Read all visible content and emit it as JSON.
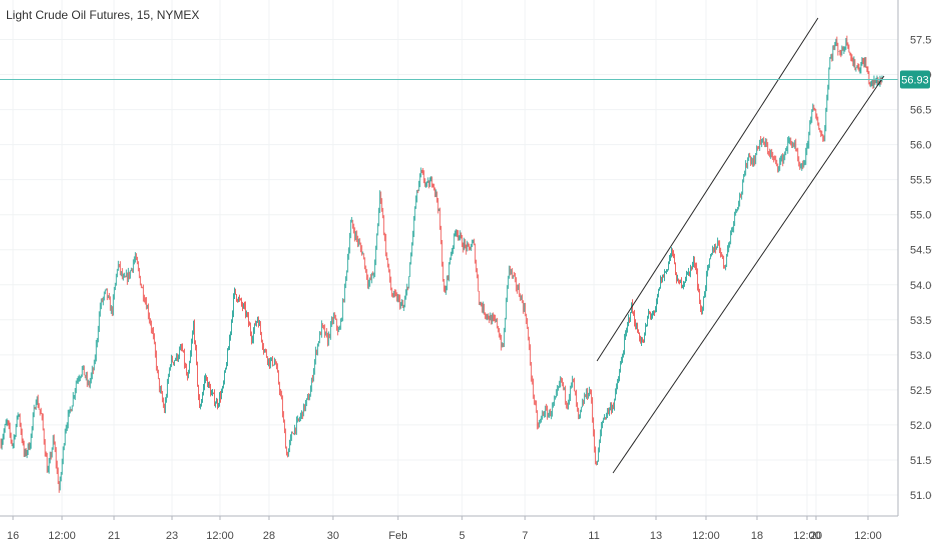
{
  "header": {
    "title": "Light Crude Oil Futures, 15, NYMEX"
  },
  "colors": {
    "up": "#26a69a",
    "down": "#ef5350",
    "grid": "#f0f3f4",
    "axis": "#b2b5be",
    "last_price_line": "#5fc4bb",
    "last_price_tag": "#1e9e8a",
    "channel": "#2b2b2b"
  },
  "chart_data": {
    "type": "candlestick",
    "title": "Light Crude Oil Futures, 15, NYMEX",
    "ylim": [
      50.7,
      57.85
    ],
    "y_ticks": [
      "51.00",
      "51.50",
      "52.00",
      "52.50",
      "53.00",
      "53.50",
      "54.00",
      "54.50",
      "55.00",
      "55.50",
      "56.00",
      "56.50",
      "57.00",
      "57.50"
    ],
    "x_ticks": [
      "16",
      "12:00",
      "21",
      "23",
      "12:00",
      "28",
      "30",
      "Feb",
      "5",
      "7",
      "11",
      "13",
      "12:00",
      "18",
      "12:00",
      "20",
      "12:00"
    ],
    "last_price": "56.93",
    "grid": true,
    "price_path": [
      [
        0,
        51.75
      ],
      [
        1,
        52.05
      ],
      [
        2,
        51.7
      ],
      [
        3,
        52.2
      ],
      [
        4,
        51.55
      ],
      [
        5,
        51.75
      ],
      [
        6,
        52.4
      ],
      [
        7,
        52.1
      ],
      [
        8,
        51.3
      ],
      [
        9,
        51.8
      ],
      [
        10,
        51.05
      ],
      [
        11,
        51.95
      ],
      [
        12,
        52.25
      ],
      [
        13,
        52.65
      ],
      [
        14,
        52.8
      ],
      [
        15,
        52.55
      ],
      [
        16,
        52.85
      ],
      [
        17,
        53.7
      ],
      [
        18,
        53.9
      ],
      [
        19,
        53.6
      ],
      [
        20,
        54.3
      ],
      [
        21,
        54.05
      ],
      [
        22,
        54.15
      ],
      [
        23,
        54.4
      ],
      [
        24,
        54.0
      ],
      [
        25,
        53.7
      ],
      [
        26,
        53.3
      ],
      [
        27,
        52.6
      ],
      [
        28,
        52.2
      ],
      [
        29,
        52.9
      ],
      [
        30,
        52.95
      ],
      [
        31,
        53.1
      ],
      [
        32,
        52.6
      ],
      [
        33,
        53.45
      ],
      [
        34,
        52.2
      ],
      [
        35,
        52.7
      ],
      [
        36,
        52.45
      ],
      [
        37,
        52.3
      ],
      [
        38,
        52.5
      ],
      [
        39,
        53.1
      ],
      [
        40,
        53.9
      ],
      [
        41,
        53.75
      ],
      [
        42,
        53.6
      ],
      [
        43,
        53.25
      ],
      [
        44,
        53.55
      ],
      [
        45,
        53.1
      ],
      [
        46,
        52.9
      ],
      [
        47,
        52.9
      ],
      [
        48,
        52.4
      ],
      [
        49,
        51.55
      ],
      [
        50,
        51.9
      ],
      [
        51,
        52.05
      ],
      [
        52,
        52.25
      ],
      [
        53,
        52.45
      ],
      [
        54,
        53.05
      ],
      [
        55,
        53.4
      ],
      [
        56,
        53.2
      ],
      [
        57,
        53.55
      ],
      [
        58,
        53.3
      ],
      [
        59,
        54.0
      ],
      [
        60,
        54.9
      ],
      [
        61,
        54.65
      ],
      [
        62,
        54.45
      ],
      [
        63,
        54.0
      ],
      [
        64,
        54.2
      ],
      [
        65,
        55.35
      ],
      [
        66,
        54.45
      ],
      [
        67,
        53.85
      ],
      [
        68,
        53.8
      ],
      [
        69,
        53.65
      ],
      [
        70,
        54.15
      ],
      [
        71,
        55.15
      ],
      [
        72,
        55.6
      ],
      [
        73,
        55.4
      ],
      [
        74,
        55.5
      ],
      [
        75,
        55.1
      ],
      [
        76,
        53.8
      ],
      [
        77,
        54.4
      ],
      [
        78,
        54.8
      ],
      [
        79,
        54.6
      ],
      [
        80,
        54.5
      ],
      [
        81,
        54.6
      ],
      [
        82,
        53.75
      ],
      [
        83,
        53.6
      ],
      [
        84,
        53.5
      ],
      [
        85,
        53.45
      ],
      [
        86,
        53.05
      ],
      [
        87,
        54.25
      ],
      [
        88,
        54.05
      ],
      [
        89,
        53.85
      ],
      [
        90,
        53.55
      ],
      [
        91,
        52.6
      ],
      [
        92,
        51.95
      ],
      [
        93,
        52.2
      ],
      [
        94,
        52.15
      ],
      [
        95,
        52.35
      ],
      [
        96,
        52.65
      ],
      [
        97,
        52.3
      ],
      [
        98,
        52.65
      ],
      [
        99,
        52.05
      ],
      [
        100,
        52.4
      ],
      [
        101,
        52.5
      ],
      [
        102,
        51.35
      ],
      [
        103,
        52.05
      ],
      [
        104,
        52.2
      ],
      [
        105,
        52.3
      ],
      [
        106,
        52.75
      ],
      [
        107,
        53.25
      ],
      [
        108,
        53.7
      ],
      [
        109,
        53.35
      ],
      [
        110,
        53.15
      ],
      [
        111,
        53.6
      ],
      [
        112,
        53.55
      ],
      [
        113,
        54.05
      ],
      [
        114,
        54.2
      ],
      [
        115,
        54.5
      ],
      [
        116,
        54.0
      ],
      [
        117,
        54.05
      ],
      [
        118,
        54.2
      ],
      [
        119,
        54.35
      ],
      [
        120,
        53.55
      ],
      [
        121,
        54.15
      ],
      [
        122,
        54.5
      ],
      [
        123,
        54.6
      ],
      [
        124,
        54.25
      ],
      [
        125,
        54.7
      ],
      [
        126,
        55.1
      ],
      [
        127,
        55.35
      ],
      [
        128,
        55.85
      ],
      [
        129,
        55.75
      ],
      [
        130,
        56.05
      ],
      [
        131,
        56.0
      ],
      [
        132,
        55.85
      ],
      [
        133,
        55.7
      ],
      [
        134,
        55.8
      ],
      [
        135,
        56.05
      ],
      [
        136,
        56.0
      ],
      [
        137,
        55.6
      ],
      [
        138,
        55.85
      ],
      [
        139,
        56.55
      ],
      [
        140,
        56.3
      ],
      [
        141,
        56.05
      ],
      [
        142,
        57.2
      ],
      [
        143,
        57.45
      ],
      [
        144,
        57.3
      ],
      [
        145,
        57.5
      ],
      [
        146,
        57.15
      ],
      [
        147,
        57.1
      ],
      [
        148,
        57.2
      ],
      [
        149,
        56.85
      ],
      [
        150,
        56.9
      ],
      [
        151,
        56.93
      ]
    ],
    "annotations": [
      {
        "type": "trend_channel",
        "upper": [
          [
            597,
            361
          ],
          [
            818,
            18
          ]
        ],
        "lower": [
          [
            613,
            473
          ],
          [
            884,
            76
          ]
        ]
      }
    ]
  }
}
